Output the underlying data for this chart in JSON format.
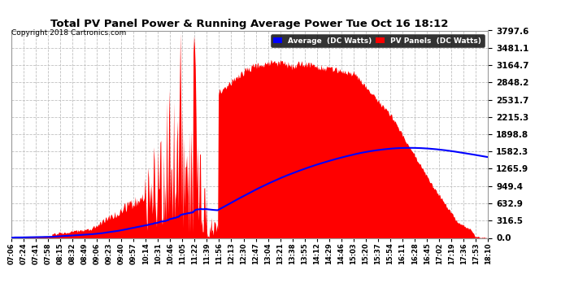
{
  "title": "Total PV Panel Power & Running Average Power Tue Oct 16 18:12",
  "copyright": "Copyright 2018 Cartronics.com",
  "legend_entries": [
    "Average  (DC Watts)",
    "PV Panels  (DC Watts)"
  ],
  "legend_colors": [
    "blue",
    "red"
  ],
  "ymin": 0.0,
  "ymax": 3797.6,
  "ytick_labels": [
    "0.0",
    "316.5",
    "632.9",
    "949.4",
    "1265.9",
    "1582.3",
    "1898.8",
    "2215.3",
    "2531.7",
    "2848.2",
    "3164.7",
    "3481.1",
    "3797.6"
  ],
  "ytick_values": [
    0.0,
    316.5,
    632.9,
    949.4,
    1265.9,
    1582.3,
    1898.8,
    2215.3,
    2531.7,
    2848.2,
    3164.7,
    3481.1,
    3797.6
  ],
  "bg_color": "#ffffff",
  "grid_color": "#c0c0c0",
  "panel_color": "#ff0000",
  "avg_color": "#0000ff",
  "xtick_labels": [
    "07:06",
    "07:24",
    "07:41",
    "07:58",
    "08:15",
    "08:32",
    "08:49",
    "09:06",
    "09:23",
    "09:40",
    "09:57",
    "10:14",
    "10:31",
    "10:46",
    "11:05",
    "11:22",
    "11:39",
    "11:56",
    "12:13",
    "12:30",
    "12:47",
    "13:04",
    "13:21",
    "13:38",
    "13:55",
    "14:12",
    "14:29",
    "14:46",
    "15:03",
    "15:20",
    "15:37",
    "15:54",
    "16:11",
    "16:28",
    "16:45",
    "17:02",
    "17:19",
    "17:36",
    "17:53",
    "18:10"
  ],
  "fig_width": 6.9,
  "fig_height": 3.75,
  "dpi": 100
}
